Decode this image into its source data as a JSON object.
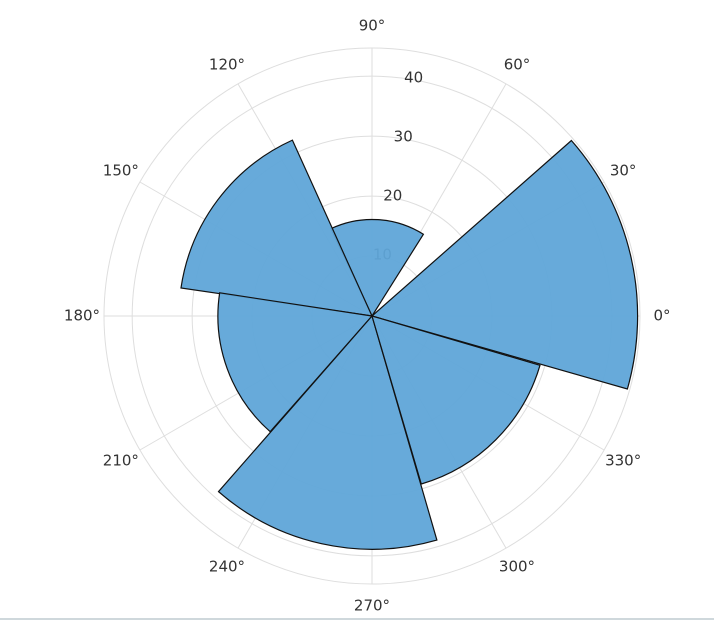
{
  "chart_data": {
    "type": "polar-bar",
    "theta": [
      12.7,
      86.5,
      143,
      200,
      257.5,
      315
    ],
    "width": 57.3,
    "values": [
      44.3,
      16.1,
      32.2,
      25.7,
      38.9,
      29.2
    ],
    "color": "#5fa5d8",
    "edgecolor": "#111111",
    "rlim": [
      0,
      44.7
    ],
    "rticks": [
      10,
      20,
      30,
      40
    ],
    "thetaticks": [
      {
        "value": 0,
        "label": "0°"
      },
      {
        "value": 30,
        "label": "30°"
      },
      {
        "value": 60,
        "label": "60°"
      },
      {
        "value": 90,
        "label": "90°"
      },
      {
        "value": 120,
        "label": "120°"
      },
      {
        "value": 150,
        "label": "150°"
      },
      {
        "value": 180,
        "label": "180°"
      },
      {
        "value": 210,
        "label": "210°"
      },
      {
        "value": 240,
        "label": "240°"
      },
      {
        "value": 270,
        "label": "270°"
      },
      {
        "value": 300,
        "label": "300°"
      },
      {
        "value": 330,
        "label": "330°"
      }
    ],
    "grid": true
  }
}
